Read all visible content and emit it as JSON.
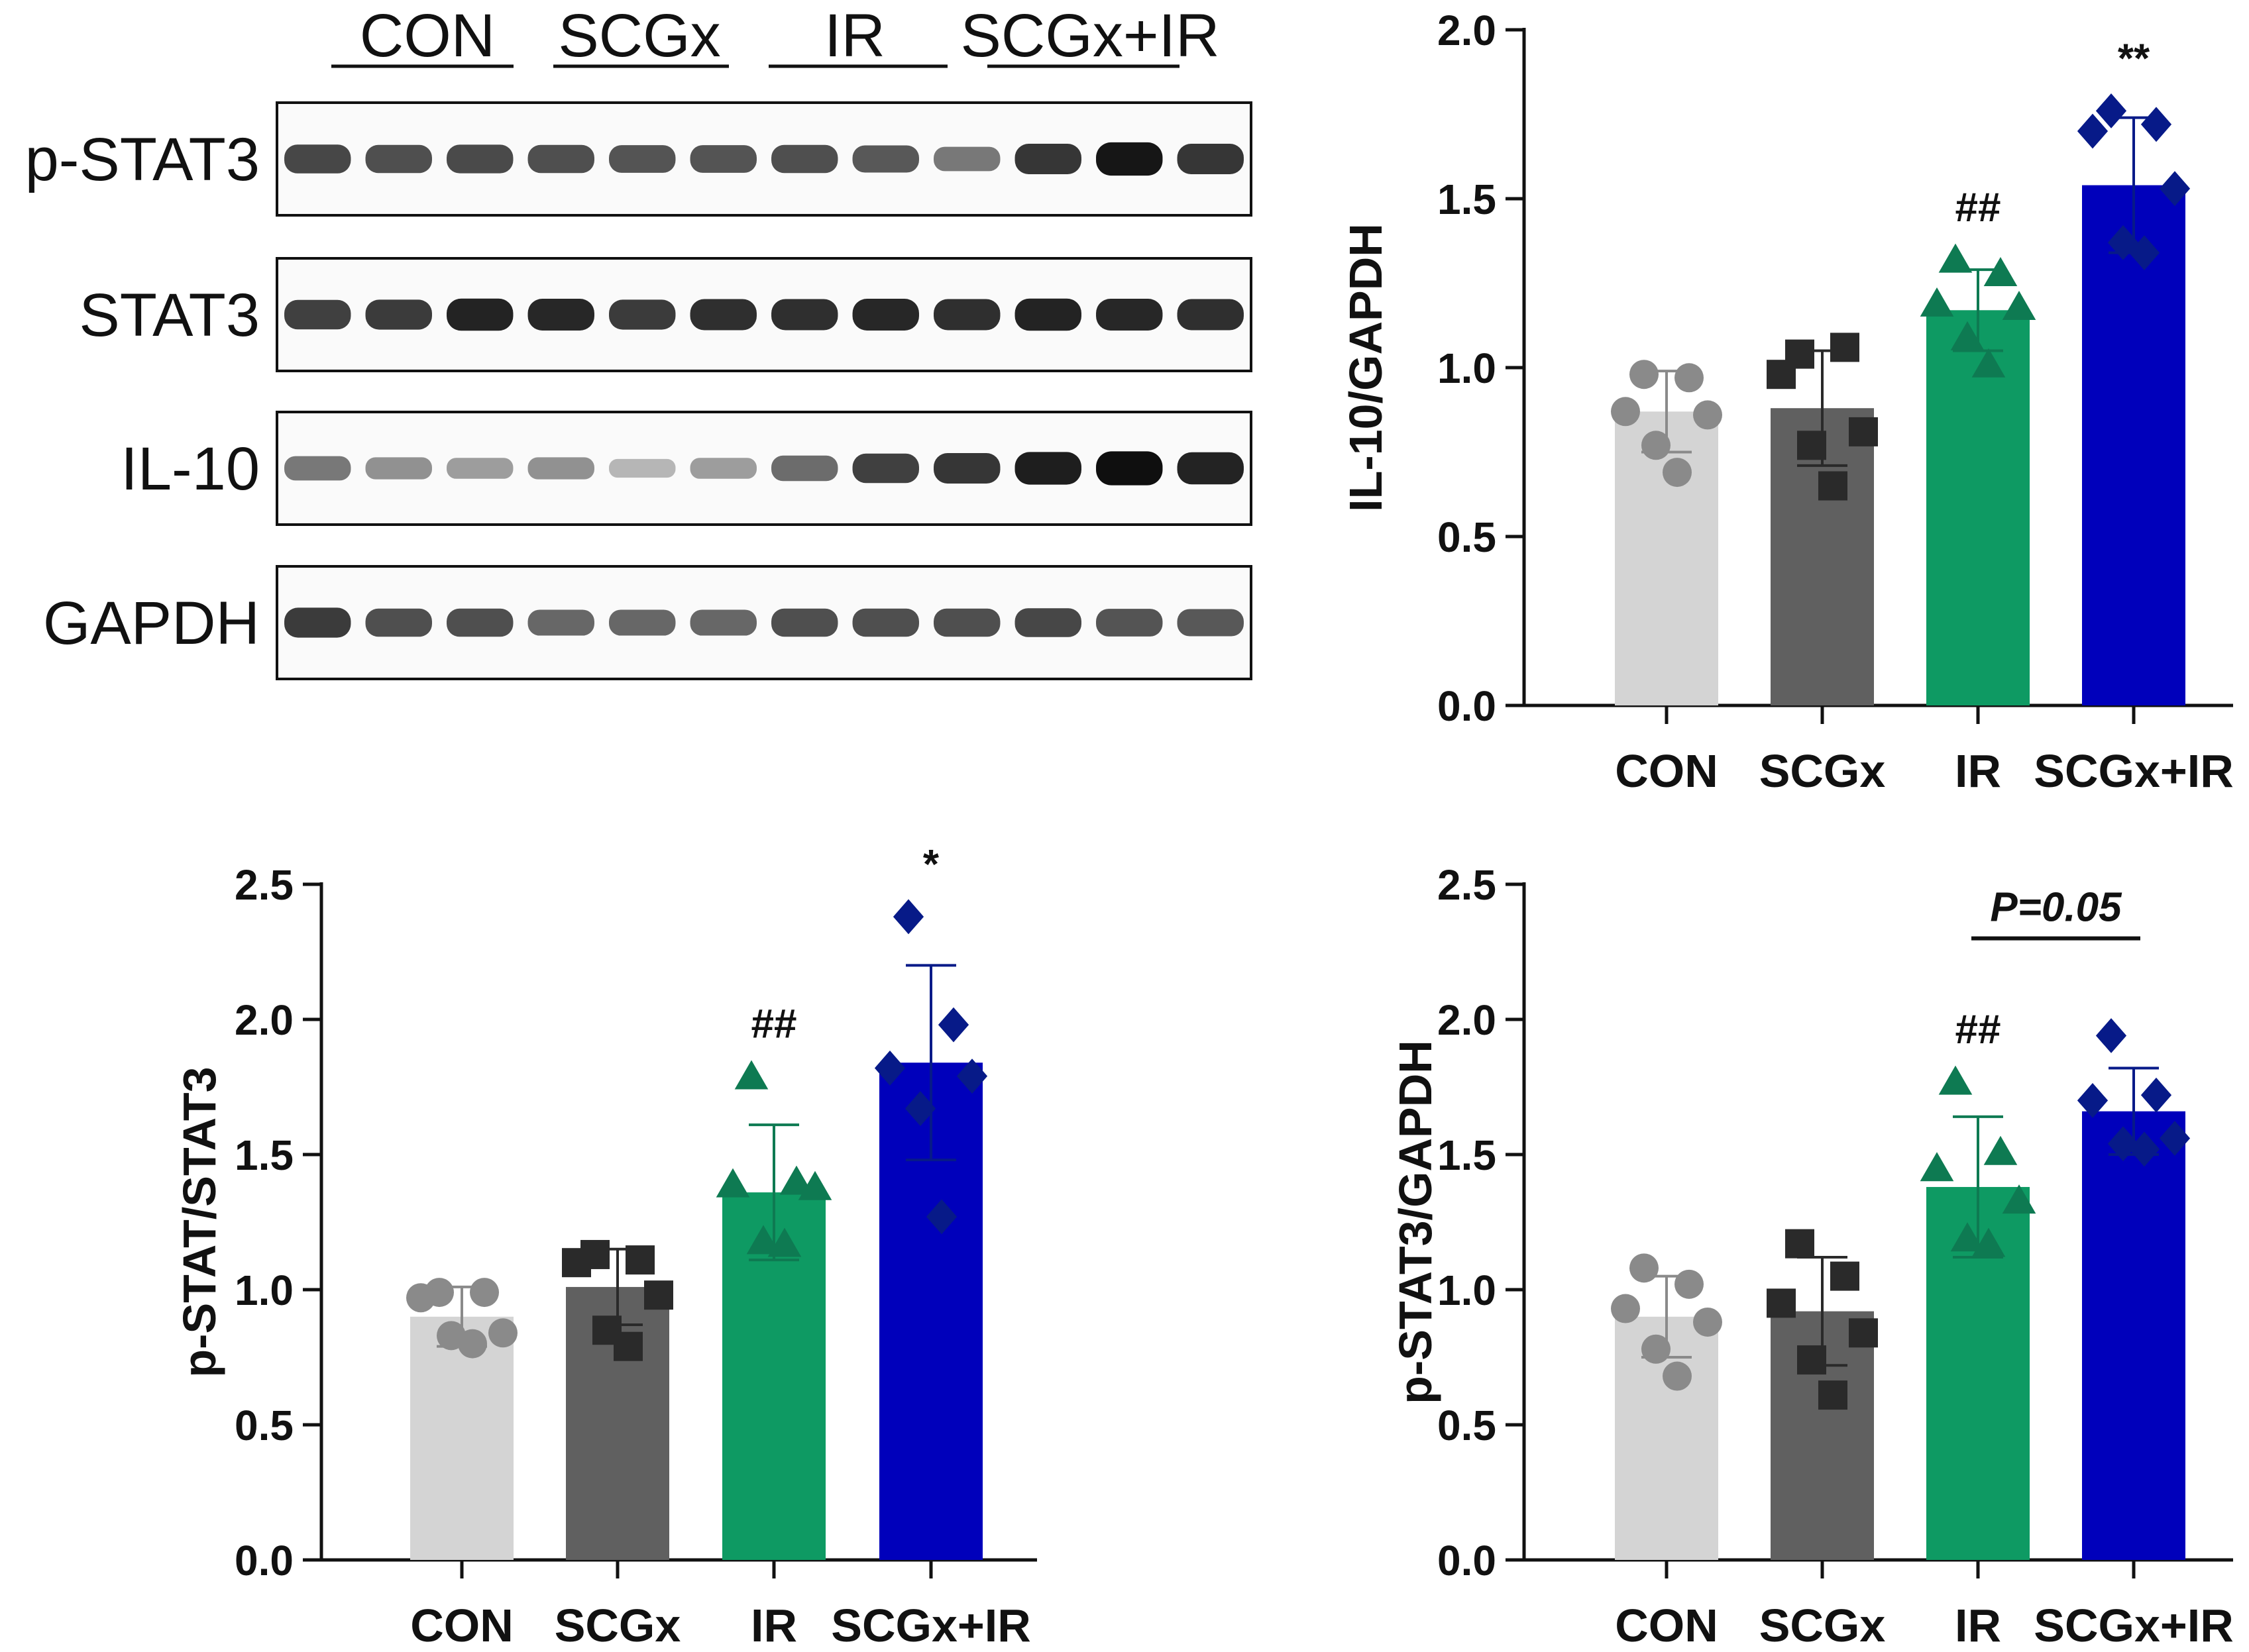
{
  "blot": {
    "groups": [
      "CON",
      "SCGx",
      "IR",
      "SCGx+IR"
    ],
    "rows": [
      {
        "label": "p-STAT3",
        "intensities": [
          0.75,
          0.72,
          0.74,
          0.72,
          0.7,
          0.7,
          0.72,
          0.68,
          0.55,
          0.82,
          0.95,
          0.82
        ]
      },
      {
        "label": "STAT3",
        "intensities": [
          0.78,
          0.8,
          0.9,
          0.88,
          0.8,
          0.85,
          0.85,
          0.88,
          0.85,
          0.9,
          0.88,
          0.85
        ]
      },
      {
        "label": "IL-10",
        "intensities": [
          0.55,
          0.45,
          0.4,
          0.45,
          0.3,
          0.4,
          0.6,
          0.78,
          0.82,
          0.92,
          0.98,
          0.9
        ]
      },
      {
        "label": "GAPDH",
        "intensities": [
          0.8,
          0.72,
          0.72,
          0.62,
          0.62,
          0.62,
          0.72,
          0.72,
          0.72,
          0.75,
          0.7,
          0.68
        ]
      }
    ]
  },
  "chart_data": [
    {
      "id": "il10",
      "type": "bar",
      "ylabel": "IL-10/GAPDH",
      "ylim": [
        0,
        2.0
      ],
      "yticks": [
        "0.0",
        "0.5",
        "1.0",
        "1.5",
        "2.0"
      ],
      "categories": [
        "CON",
        "SCGx",
        "IR",
        "SCGx+IR"
      ],
      "values": [
        0.87,
        0.88,
        1.17,
        1.54
      ],
      "sd": [
        0.12,
        0.17,
        0.12,
        0.2
      ],
      "colors": [
        "#d4d4d4",
        "#606060",
        "#0e9a63",
        "#0000bb"
      ],
      "point_colors": [
        "#8a8a8a",
        "#2a2a2a",
        "#0e7a52",
        "#071a88"
      ],
      "markers": [
        "circle",
        "square",
        "triangle",
        "diamond"
      ],
      "points": [
        [
          0.98,
          0.97,
          0.87,
          0.86,
          0.77,
          0.69
        ],
        [
          1.04,
          1.06,
          0.98,
          0.81,
          0.77,
          0.65
        ],
        [
          1.32,
          1.28,
          1.19,
          1.18,
          1.09,
          1.01
        ],
        [
          1.76,
          1.72,
          1.7,
          1.53,
          1.37,
          1.34
        ]
      ],
      "annotations": [
        {
          "category": "IR",
          "text": "##"
        },
        {
          "category": "SCGx+IR",
          "text": "**"
        }
      ]
    },
    {
      "id": "pstat-stat3",
      "type": "bar",
      "ylabel": "p-STAT/STAT3",
      "ylim": [
        0,
        2.5
      ],
      "yticks": [
        "0.0",
        "0.5",
        "1.0",
        "1.5",
        "2.0",
        "2.5"
      ],
      "categories": [
        "CON",
        "SCGx",
        "IR",
        "SCGx+IR"
      ],
      "values": [
        0.9,
        1.01,
        1.36,
        1.84
      ],
      "sd": [
        0.11,
        0.14,
        0.25,
        0.36
      ],
      "colors": [
        "#d4d4d4",
        "#606060",
        "#0e9a63",
        "#0000bb"
      ],
      "point_colors": [
        "#8a8a8a",
        "#2a2a2a",
        "#0e7a52",
        "#071a88"
      ],
      "markers": [
        "circle",
        "square",
        "triangle",
        "diamond"
      ],
      "points": [
        [
          0.99,
          0.99,
          0.97,
          0.84,
          0.83,
          0.8
        ],
        [
          1.13,
          1.11,
          1.1,
          0.98,
          0.85,
          0.79
        ],
        [
          1.79,
          1.4,
          1.39,
          1.38,
          1.18,
          1.17
        ],
        [
          2.38,
          1.98,
          1.82,
          1.79,
          1.67,
          1.27
        ]
      ],
      "annotations": [
        {
          "category": "IR",
          "text": "##"
        },
        {
          "category": "SCGx+IR",
          "text": "*"
        }
      ]
    },
    {
      "id": "pstat3-gapdh",
      "type": "bar",
      "ylabel": "p-STAT3/GAPDH",
      "ylim": [
        0,
        2.5
      ],
      "yticks": [
        "0.0",
        "0.5",
        "1.0",
        "1.5",
        "2.0",
        "2.5"
      ],
      "categories": [
        "CON",
        "SCGx",
        "IR",
        "SCGx+IR"
      ],
      "values": [
        0.9,
        0.92,
        1.38,
        1.66
      ],
      "sd": [
        0.15,
        0.2,
        0.26,
        0.16
      ],
      "colors": [
        "#d4d4d4",
        "#606060",
        "#0e9a63",
        "#0000bb"
      ],
      "point_colors": [
        "#8a8a8a",
        "#2a2a2a",
        "#0e7a52",
        "#071a88"
      ],
      "markers": [
        "circle",
        "square",
        "triangle",
        "diamond"
      ],
      "points": [
        [
          1.08,
          1.02,
          0.93,
          0.88,
          0.78,
          0.68
        ],
        [
          1.17,
          1.05,
          0.95,
          0.84,
          0.74,
          0.61
        ],
        [
          1.77,
          1.51,
          1.45,
          1.33,
          1.19,
          1.17
        ],
        [
          1.94,
          1.72,
          1.7,
          1.56,
          1.54,
          1.52
        ]
      ],
      "annotations": [
        {
          "category": "IR",
          "text": "##"
        }
      ],
      "comparison": {
        "from": "IR",
        "to": "SCGx+IR",
        "text": "P=0.05"
      }
    }
  ]
}
